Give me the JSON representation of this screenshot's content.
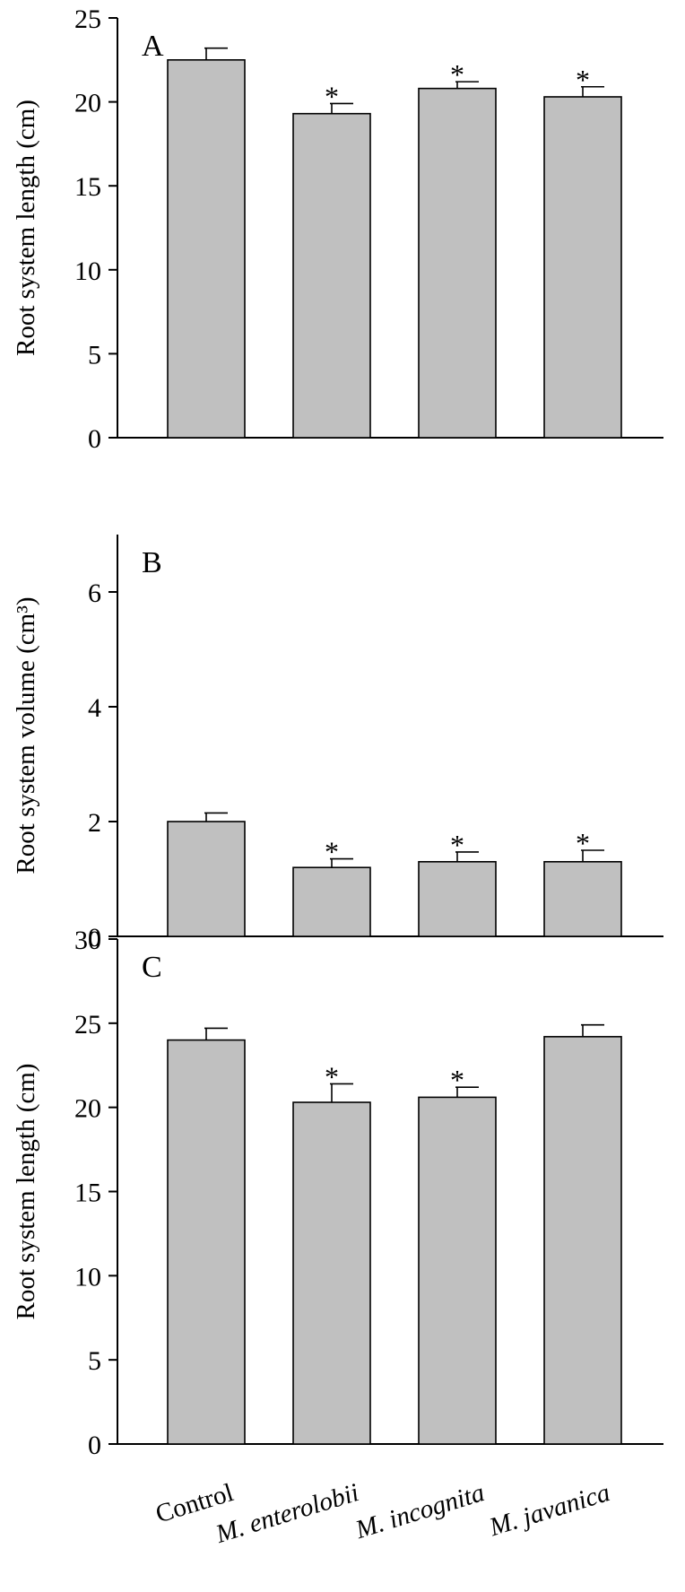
{
  "categories": [
    {
      "text": "Control",
      "italic": false
    },
    {
      "text": "M. enterolobii",
      "italic": true
    },
    {
      "text": "M. incognita",
      "italic": true
    },
    {
      "text": "M. javanica",
      "italic": true
    }
  ],
  "colors": {
    "bar_fill": "#c0c0c0",
    "bar_stroke": "#000000",
    "axis": "#000000"
  },
  "chart_data": [
    {
      "type": "bar",
      "panel_label": "A",
      "ylabel": "Root system length (cm)",
      "ylim": [
        0,
        25
      ],
      "yticks": [
        0,
        5,
        10,
        15,
        20,
        25
      ],
      "values": [
        22.5,
        19.3,
        20.8,
        20.3
      ],
      "errors": [
        0.7,
        0.6,
        0.4,
        0.6
      ],
      "significant": [
        false,
        true,
        true,
        true
      ],
      "significance_marker": "*"
    },
    {
      "type": "bar",
      "panel_label": "B",
      "ylabel": "Root system volume (cm³)",
      "ylim": [
        0,
        7
      ],
      "yticks": [
        0,
        2,
        4,
        6
      ],
      "values": [
        2.0,
        1.2,
        1.3,
        1.3
      ],
      "errors": [
        0.15,
        0.15,
        0.17,
        0.2
      ],
      "significant": [
        false,
        true,
        true,
        true
      ],
      "significance_marker": "*"
    },
    {
      "type": "bar",
      "panel_label": "C",
      "ylabel": "Root system length (cm)",
      "ylim": [
        0,
        30
      ],
      "yticks": [
        0,
        5,
        10,
        15,
        20,
        25,
        30
      ],
      "values": [
        24.0,
        20.3,
        20.6,
        24.2
      ],
      "errors": [
        0.7,
        1.1,
        0.6,
        0.7
      ],
      "significant": [
        false,
        true,
        true,
        false
      ],
      "significance_marker": "*"
    }
  ]
}
